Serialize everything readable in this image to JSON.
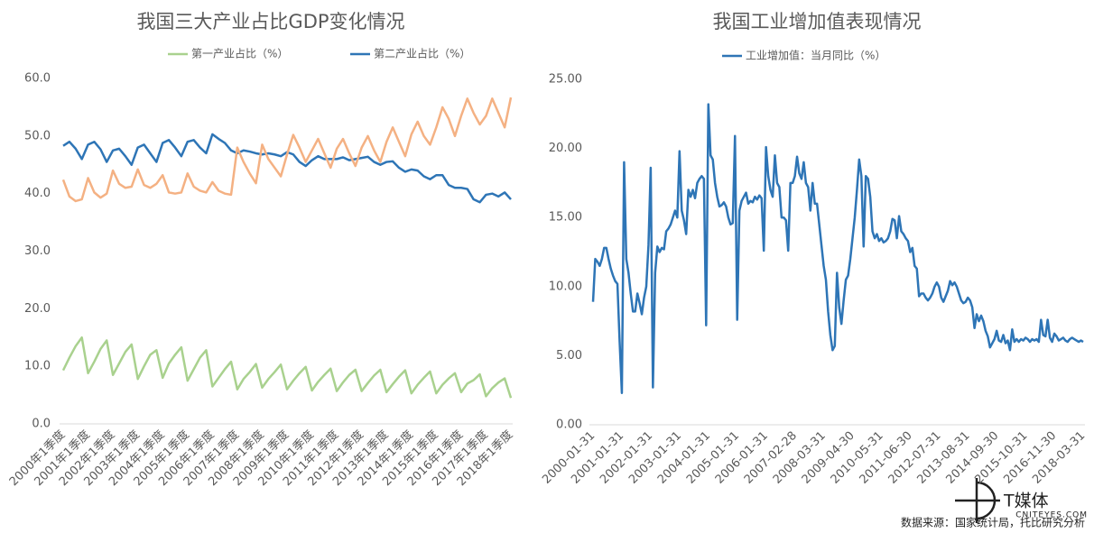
{
  "chart_data": [
    {
      "type": "line",
      "title": "我国三大产业占比GDP变化情况",
      "categories": [
        "2000年1季度",
        null,
        null,
        null,
        "2001年1季度",
        null,
        null,
        null,
        "2002年1季度",
        null,
        null,
        null,
        "2003年1季度",
        null,
        null,
        null,
        "2004年1季度",
        null,
        null,
        null,
        "2005年1季度",
        null,
        null,
        null,
        "2006年1季度",
        null,
        null,
        null,
        "2007年1季度",
        null,
        null,
        null,
        "2008年1季度",
        null,
        null,
        null,
        "2009年1季度",
        null,
        null,
        null,
        "2010年1季度",
        null,
        null,
        null,
        "2011年1季度",
        null,
        null,
        null,
        "2012年1季度",
        null,
        null,
        null,
        "2013年1季度",
        null,
        null,
        null,
        "2014年1季度",
        null,
        null,
        null,
        "2015年1季度",
        null,
        null,
        null,
        "2016年1季度",
        null,
        null,
        null,
        "2017年1季度",
        null,
        null,
        null,
        "2018年1季度"
      ],
      "series": [
        {
          "name": "第一产业占比（%）",
          "color": "#a9d18e",
          "values": [
            9.3,
            11.5,
            13.5,
            15.0,
            8.8,
            10.8,
            13.0,
            14.5,
            8.5,
            10.5,
            12.5,
            13.8,
            7.8,
            10.0,
            12.0,
            12.8,
            8.0,
            10.5,
            12.0,
            13.3,
            7.5,
            9.5,
            11.5,
            12.8,
            6.5,
            8.0,
            9.5,
            10.8,
            6.0,
            7.8,
            9.0,
            10.4,
            6.3,
            7.8,
            9.0,
            10.3,
            6.0,
            7.5,
            8.8,
            9.9,
            5.8,
            7.3,
            8.5,
            9.6,
            5.7,
            7.2,
            8.5,
            9.4,
            5.7,
            7.1,
            8.4,
            9.4,
            5.5,
            6.9,
            8.2,
            9.3,
            5.3,
            6.8,
            8.0,
            9.1,
            5.3,
            6.8,
            7.9,
            8.8,
            5.5,
            7.0,
            7.6,
            8.6,
            4.8,
            6.2,
            7.2,
            7.9,
            4.5
          ]
        },
        {
          "name": "第二产业占比（%）",
          "color": "#2e75b6",
          "values": [
            48.3,
            49.0,
            47.8,
            46.0,
            48.5,
            49.0,
            47.7,
            45.5,
            47.5,
            47.8,
            46.5,
            45.0,
            48.0,
            48.5,
            47.0,
            45.5,
            48.8,
            49.3,
            48.0,
            46.5,
            49.0,
            49.3,
            48.0,
            47.0,
            50.3,
            49.5,
            48.8,
            47.5,
            47.0,
            47.5,
            47.3,
            47.0,
            46.8,
            47.0,
            46.8,
            46.5,
            47.2,
            46.8,
            45.5,
            44.8,
            45.8,
            46.5,
            46.0,
            46.0,
            46.0,
            46.3,
            45.8,
            46.0,
            46.2,
            46.4,
            45.5,
            45.0,
            45.5,
            45.6,
            44.5,
            43.8,
            44.2,
            44.0,
            43.0,
            42.5,
            43.2,
            43.2,
            41.5,
            41.0,
            41.0,
            40.8,
            39.0,
            38.5,
            39.8,
            40.0,
            39.5,
            40.2,
            39.0
          ]
        },
        {
          "color": "#f4b183",
          "values": [
            42.4,
            39.5,
            38.7,
            39.0,
            42.7,
            40.2,
            39.3,
            40.0,
            44.0,
            41.7,
            41.0,
            41.2,
            44.2,
            41.5,
            41.0,
            41.7,
            43.2,
            40.2,
            40.0,
            40.2,
            43.5,
            41.2,
            40.5,
            40.2,
            42.0,
            40.5,
            40.0,
            39.8,
            48.0,
            45.5,
            43.5,
            41.8,
            48.5,
            46.0,
            44.5,
            43.0,
            46.8,
            50.2,
            48.0,
            45.5,
            47.5,
            49.5,
            47.0,
            44.5,
            47.8,
            49.5,
            47.0,
            44.8,
            48.0,
            50.0,
            47.5,
            45.5,
            49.0,
            51.5,
            49.0,
            46.5,
            50.3,
            52.5,
            50.0,
            48.5,
            51.5,
            55.0,
            53.0,
            50.0,
            53.5,
            56.5,
            54.0,
            52.0,
            53.5,
            56.5,
            54.0,
            51.5,
            56.7
          ]
        }
      ],
      "ylim": [
        0,
        60
      ],
      "yticks": [
        {
          "value": 0,
          "label": "0.0"
        },
        {
          "value": 10,
          "label": "10.0"
        },
        {
          "value": 20,
          "label": "20.0"
        },
        {
          "value": 30,
          "label": "30.0"
        },
        {
          "value": 40,
          "label": "40.0"
        },
        {
          "value": 50,
          "label": "50.0"
        },
        {
          "value": 60,
          "label": "60.0"
        }
      ],
      "grid": false,
      "legend": "top"
    },
    {
      "type": "line",
      "title": "我国工业增加值表现情况",
      "categories": [
        "2000-01-31",
        null,
        null,
        null,
        null,
        null,
        null,
        null,
        null,
        null,
        null,
        null,
        null,
        "2001-01-31",
        null,
        null,
        null,
        null,
        null,
        null,
        null,
        null,
        null,
        null,
        null,
        null,
        "2002-01-31",
        null,
        null,
        null,
        null,
        null,
        null,
        null,
        null,
        null,
        null,
        null,
        null,
        "2003-01-31",
        null,
        null,
        null,
        null,
        null,
        null,
        null,
        null,
        null,
        null,
        null,
        null,
        "2004-01-31",
        null,
        null,
        null,
        null,
        null,
        null,
        null,
        null,
        null,
        null,
        null,
        null,
        "2005-01-31",
        null,
        null,
        null,
        null,
        null,
        null,
        null,
        null,
        null,
        null,
        null,
        null,
        "2006-01-31",
        null,
        null,
        null,
        null,
        null,
        null,
        null,
        null,
        null,
        null,
        null,
        null,
        "2007-02-28",
        null,
        null,
        null,
        null,
        null,
        null,
        null,
        null,
        null,
        null,
        null,
        null,
        "2008-03-31",
        null,
        null,
        null,
        null,
        null,
        null,
        null,
        null,
        null,
        null,
        null,
        null,
        "2009-04-30",
        null,
        null,
        null,
        null,
        null,
        null,
        null,
        null,
        null,
        null,
        null,
        null,
        "2010-05-31",
        null,
        null,
        null,
        null,
        null,
        null,
        null,
        null,
        null,
        null,
        null,
        null,
        "2011-06-30",
        null,
        null,
        null,
        null,
        null,
        null,
        null,
        null,
        null,
        null,
        null,
        null,
        "2012-07-31",
        null,
        null,
        null,
        null,
        null,
        null,
        null,
        null,
        null,
        null,
        null,
        null,
        "2013-08-31",
        null,
        null,
        null,
        null,
        null,
        null,
        null,
        null,
        null,
        null,
        null,
        null,
        "2014-09-30",
        null,
        null,
        null,
        null,
        null,
        null,
        null,
        null,
        null,
        null,
        null,
        null,
        "2015-10-31",
        null,
        null,
        null,
        null,
        null,
        null,
        null,
        null,
        null,
        null,
        null,
        null,
        "2016-11-30",
        null,
        null,
        null,
        null,
        null,
        null,
        null,
        null,
        null,
        null,
        null,
        null,
        "2018-03-31"
      ],
      "series": [
        {
          "name": "工业增加值：当月同比（%）",
          "color": "#2e75b6",
          "values": [
            8.9,
            12.0,
            11.8,
            11.5,
            12.0,
            12.8,
            12.8,
            12.0,
            11.3,
            10.8,
            10.4,
            10.2,
            6.0,
            2.3,
            19.0,
            12.0,
            11.0,
            9.5,
            8.2,
            8.2,
            9.5,
            8.8,
            8.0,
            9.2,
            10.0,
            13.0,
            18.6,
            2.7,
            11.0,
            12.9,
            12.5,
            12.8,
            12.7,
            14.0,
            14.2,
            14.5,
            15.0,
            15.5,
            15.0,
            19.8,
            15.5,
            14.8,
            13.8,
            17.0,
            16.5,
            17.0,
            16.4,
            17.5,
            17.8,
            18.0,
            17.8,
            7.2,
            23.2,
            19.5,
            19.2,
            17.5,
            16.5,
            15.8,
            15.9,
            16.1,
            15.8,
            15.0,
            14.5,
            14.6,
            20.9,
            7.6,
            15.5,
            16.2,
            16.5,
            16.8,
            16.0,
            16.2,
            16.1,
            16.5,
            16.3,
            16.6,
            16.4,
            12.6,
            20.1,
            18.0,
            17.0,
            16.5,
            19.5,
            17.5,
            17.2,
            15.0,
            15.0,
            14.8,
            12.6,
            17.5,
            17.5,
            18.0,
            19.4,
            18.2,
            17.8,
            19.0,
            17.5,
            17.2,
            15.5,
            17.5,
            16.0,
            16.0,
            14.5,
            13.0,
            11.5,
            10.5,
            8.2,
            6.5,
            5.4,
            5.7,
            11.0,
            8.5,
            7.3,
            9.0,
            10.5,
            10.8,
            12.0,
            13.5,
            15.0,
            17.0,
            19.2,
            18.0,
            12.9,
            18.0,
            17.8,
            16.5,
            14.0,
            13.5,
            13.8,
            13.3,
            13.5,
            13.2,
            13.3,
            13.5,
            14.0,
            14.9,
            14.8,
            13.5,
            15.1,
            14.0,
            13.8,
            13.5,
            13.3,
            12.5,
            12.8,
            11.5,
            11.3,
            9.3,
            9.5,
            9.5,
            9.2,
            9.0,
            9.2,
            9.5,
            10.0,
            10.3,
            10.0,
            9.2,
            8.9,
            9.3,
            9.7,
            10.4,
            10.1,
            10.3,
            10.0,
            9.5,
            9.0,
            8.8,
            8.9,
            9.2,
            9.0,
            8.5,
            7.0,
            8.0,
            7.5,
            7.9,
            7.5,
            6.8,
            6.4,
            5.6,
            5.9,
            6.2,
            6.8,
            6.1,
            6.0,
            6.5,
            5.9,
            6.1,
            5.4,
            6.9,
            6.0,
            6.2,
            6.0,
            6.2,
            6.1,
            6.3,
            6.2,
            6.0,
            6.2,
            6.1,
            6.2,
            6.0,
            7.6,
            6.5,
            6.4,
            7.6,
            6.3,
            6.0,
            6.6,
            6.4,
            6.1,
            6.2,
            6.3,
            6.1,
            6.0,
            6.2,
            6.3,
            6.2,
            6.1,
            6.0,
            6.1,
            6.0
          ]
        }
      ],
      "ylim": [
        0,
        25
      ],
      "yticks": [
        {
          "value": 0,
          "label": "0.00"
        },
        {
          "value": 5,
          "label": "5.00"
        },
        {
          "value": 10,
          "label": "10.00"
        },
        {
          "value": 15,
          "label": "15.00"
        },
        {
          "value": 20,
          "label": "20.00"
        },
        {
          "value": 25,
          "label": "25.00"
        }
      ],
      "grid": false,
      "legend": "top"
    }
  ],
  "watermark": {
    "brand": "T媒体",
    "site": "CNITEYES.COM"
  },
  "source": "数据来源：国家统计局，托比研究分析"
}
